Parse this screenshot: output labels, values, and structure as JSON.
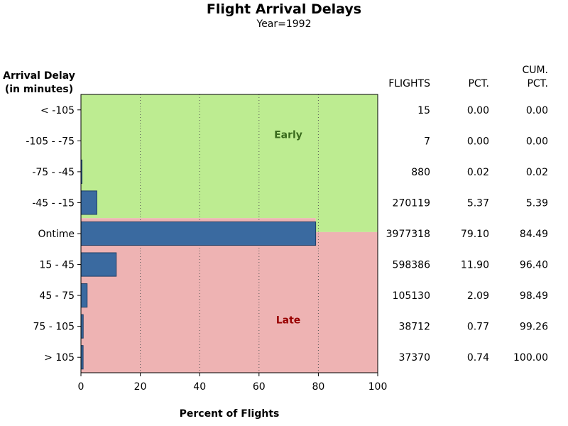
{
  "title": "Flight Arrival Delays",
  "subtitle": "Year=1992",
  "ylabel_line1": "Arrival Delay",
  "ylabel_line2": "(in minutes)",
  "xlabel": "Percent of Flights",
  "table_headers": {
    "flights": "FLIGHTS",
    "pct": "PCT.",
    "cum_line1": "CUM.",
    "cum_line2": "PCT."
  },
  "colors": {
    "bar": "#3a6aa0",
    "early_region": "#bdec91",
    "late_region": "#eeb3b3",
    "early_label": "#3a6b1e",
    "late_label": "#990000"
  },
  "chart_data": {
    "type": "bar",
    "orientation": "horizontal",
    "categories": [
      "< -105",
      "-105 - -75",
      "-75 - -45",
      "-45 - -15",
      "Ontime",
      "15 - 45",
      "45 - 75",
      "75 - 105",
      "> 105"
    ],
    "values": [
      0.0,
      0.0,
      0.02,
      5.37,
      79.1,
      11.9,
      2.09,
      0.77,
      0.74
    ],
    "flights": [
      "15",
      "7",
      "880",
      "270119",
      "3977318",
      "598386",
      "105130",
      "38712",
      "37370"
    ],
    "pct": [
      "0.00",
      "0.00",
      "0.02",
      "5.37",
      "79.10",
      "11.90",
      "2.09",
      "0.77",
      "0.74"
    ],
    "cum_pct": [
      "0.00",
      "0.00",
      "0.02",
      "5.39",
      "84.49",
      "96.40",
      "98.49",
      "99.26",
      "100.00"
    ],
    "xlim": [
      0,
      100
    ],
    "xticks": [
      0,
      20,
      40,
      60,
      80,
      100
    ],
    "grid": "vertical dotted",
    "regions": [
      {
        "label": "Early",
        "from_category": "< -105",
        "to_category": "-45 - -15",
        "extends_through": "Ontime",
        "cum_boundary": 84.49
      },
      {
        "label": "Late",
        "from_category": "Ontime",
        "to_category": "> 105",
        "cum_boundary": 84.49
      }
    ]
  }
}
